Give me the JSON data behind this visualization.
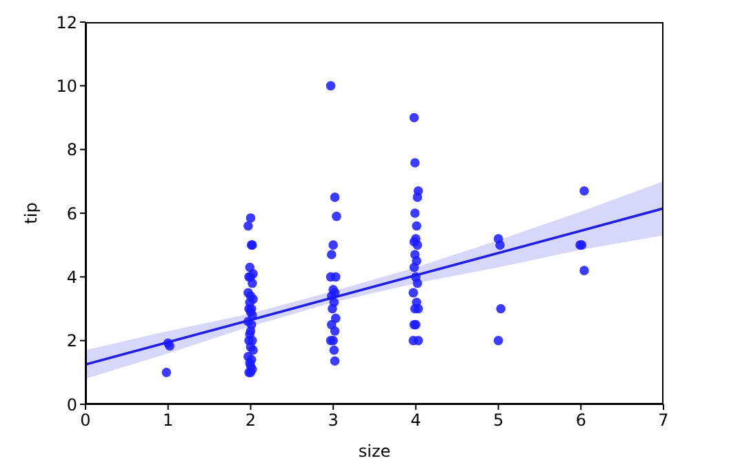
{
  "chart_data": {
    "type": "scatter",
    "xlabel": "size",
    "ylabel": "tip",
    "xlim": [
      0,
      7
    ],
    "xticks": [
      0,
      1,
      2,
      3,
      4,
      5,
      6,
      7
    ],
    "ylim": [
      0,
      12
    ],
    "yticks": [
      0,
      2,
      4,
      6,
      8,
      10,
      12
    ],
    "grid": false,
    "series": [
      {
        "color": "#1a1aff",
        "marker": "circle",
        "x": [
          0.98,
          1.02,
          1.0,
          2.0,
          1.97,
          2.01,
          2.02,
          1.99,
          2.03,
          1.98,
          2.0,
          2.02,
          1.97,
          2.0,
          2.03,
          1.99,
          2.01,
          1.98,
          2.0,
          2.02,
          1.97,
          2.01,
          2.0,
          1.99,
          2.02,
          1.98,
          2.0,
          2.03,
          1.97,
          2.01,
          1.99,
          2.0,
          2.02,
          1.98,
          2.0,
          2.97,
          3.02,
          3.04,
          3.0,
          2.98,
          2.97,
          3.03,
          3.0,
          3.02,
          2.98,
          3.01,
          2.99,
          3.03,
          2.98,
          3.02,
          3.0,
          2.97,
          3.01,
          3.02,
          3.98,
          3.99,
          4.03,
          4.02,
          3.99,
          4.01,
          4.0,
          3.98,
          4.02,
          3.99,
          4.01,
          3.98,
          4.0,
          4.02,
          3.97,
          4.01,
          3.99,
          4.03,
          4.0,
          3.98,
          3.97,
          4.03,
          5.0,
          5.02,
          5.03,
          5.0,
          5.99,
          6.01,
          6.04,
          6.04
        ],
        "values": [
          1.0,
          1.83,
          1.92,
          5.85,
          5.6,
          5.0,
          5.0,
          4.3,
          4.1,
          4.0,
          4.0,
          3.8,
          3.5,
          3.4,
          3.3,
          3.2,
          3.0,
          3.0,
          2.9,
          2.8,
          2.6,
          2.5,
          2.3,
          2.2,
          2.0,
          2.0,
          1.8,
          1.7,
          1.5,
          1.4,
          1.3,
          1.2,
          1.1,
          1.0,
          1.0,
          10.0,
          6.5,
          5.9,
          5.0,
          4.7,
          4.0,
          4.0,
          3.6,
          3.5,
          3.4,
          3.2,
          3.0,
          2.7,
          2.5,
          2.3,
          2.0,
          2.0,
          1.7,
          1.36,
          9.0,
          7.58,
          6.7,
          6.5,
          6.0,
          5.6,
          5.2,
          5.1,
          5.0,
          4.7,
          4.5,
          4.3,
          4.0,
          3.8,
          3.5,
          3.2,
          3.0,
          3.0,
          2.5,
          2.5,
          2.0,
          2.0,
          5.2,
          5.0,
          3.0,
          2.0,
          5.0,
          5.0,
          6.7,
          4.2
        ]
      },
      {
        "type": "line",
        "color": "#1f1fe6",
        "x": [
          0,
          1,
          2,
          3,
          4,
          5,
          6,
          7
        ],
        "values": [
          1.25,
          1.95,
          2.65,
          3.35,
          4.05,
          4.75,
          5.45,
          6.15
        ],
        "lower": [
          0.8,
          1.6,
          2.45,
          3.2,
          3.8,
          4.3,
          4.85,
          5.3
        ],
        "upper": [
          1.7,
          2.3,
          2.85,
          3.55,
          4.3,
          5.15,
          6.05,
          7.0
        ]
      }
    ]
  }
}
